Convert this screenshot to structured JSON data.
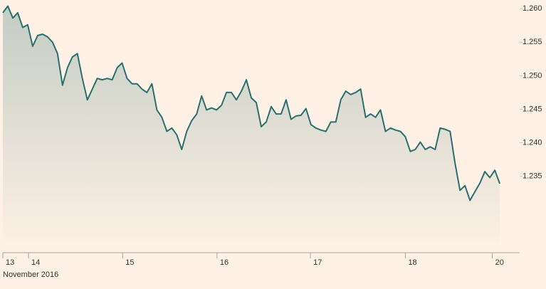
{
  "chart_data": {
    "type": "area",
    "x_label": "November 2016",
    "x": [
      0,
      1,
      2,
      3,
      4,
      5,
      6,
      7,
      8,
      9,
      10,
      11,
      12,
      13,
      14,
      15,
      16,
      17,
      18,
      19,
      20,
      21,
      22,
      23,
      24,
      25,
      26,
      27,
      28,
      29,
      30,
      31,
      32,
      33,
      34,
      35,
      36,
      37,
      38,
      39,
      40,
      41,
      42,
      43,
      44,
      45,
      46,
      47,
      48,
      49,
      50,
      51,
      52,
      53,
      54,
      55,
      56,
      57,
      58,
      59,
      60,
      61,
      62,
      63,
      64,
      65,
      66,
      67,
      68,
      69,
      70,
      71,
      72,
      73,
      74,
      75,
      76,
      77,
      78,
      79,
      80,
      81,
      82,
      83,
      84,
      85,
      86,
      87,
      88,
      89,
      90,
      91,
      92,
      93,
      94,
      95,
      96,
      97,
      98,
      99,
      100
    ],
    "values": [
      1.2594,
      1.2604,
      1.2586,
      1.2594,
      1.2572,
      1.2576,
      1.2544,
      1.256,
      1.2562,
      1.2558,
      1.255,
      1.2533,
      1.2486,
      1.2512,
      1.2528,
      1.2533,
      1.2496,
      1.2464,
      1.248,
      1.2496,
      1.2494,
      1.2496,
      1.2494,
      1.2512,
      1.2519,
      1.2496,
      1.2488,
      1.2488,
      1.248,
      1.2475,
      1.2488,
      1.2449,
      1.2438,
      1.2417,
      1.2422,
      1.2412,
      1.239,
      1.2417,
      1.2433,
      1.2443,
      1.247,
      1.2449,
      1.2452,
      1.2449,
      1.2456,
      1.2475,
      1.2475,
      1.2464,
      1.2477,
      1.2494,
      1.2467,
      1.246,
      1.2424,
      1.2431,
      1.2454,
      1.2443,
      1.2443,
      1.2464,
      1.2435,
      1.244,
      1.2441,
      1.2451,
      1.2427,
      1.2422,
      1.2419,
      1.2417,
      1.2431,
      1.2431,
      1.2464,
      1.2477,
      1.2472,
      1.2475,
      1.248,
      1.2438,
      1.2443,
      1.2438,
      1.2449,
      1.2417,
      1.2422,
      1.2419,
      1.2417,
      1.2409,
      1.2387,
      1.239,
      1.2401,
      1.239,
      1.2394,
      1.239,
      1.2422,
      1.242,
      1.2417,
      1.2369,
      1.2329,
      1.2336,
      1.2314,
      1.2327,
      1.234,
      1.2357,
      1.2348,
      1.2359,
      1.2339
    ],
    "color": "#2a6f6f",
    "xlim": [
      0,
      104
    ],
    "xticks": [
      {
        "value": 0,
        "label": "13"
      },
      {
        "value": 5.16,
        "label": "14"
      },
      {
        "value": 24.1,
        "label": "15"
      },
      {
        "value": 43.1,
        "label": "16"
      },
      {
        "value": 61.9,
        "label": "17"
      },
      {
        "value": 81.0,
        "label": "18"
      },
      {
        "value": 98.5,
        "label": "20"
      }
    ],
    "ylim": [
      1.2236,
      1.2613
    ],
    "yticks": [
      1.235,
      {
        "value": 1.24,
        "label": "1.240"
      },
      1.245,
      {
        "value": 1.25,
        "label": "1.250"
      },
      1.255,
      {
        "value": 1.26,
        "label": "1.260"
      }
    ]
  }
}
